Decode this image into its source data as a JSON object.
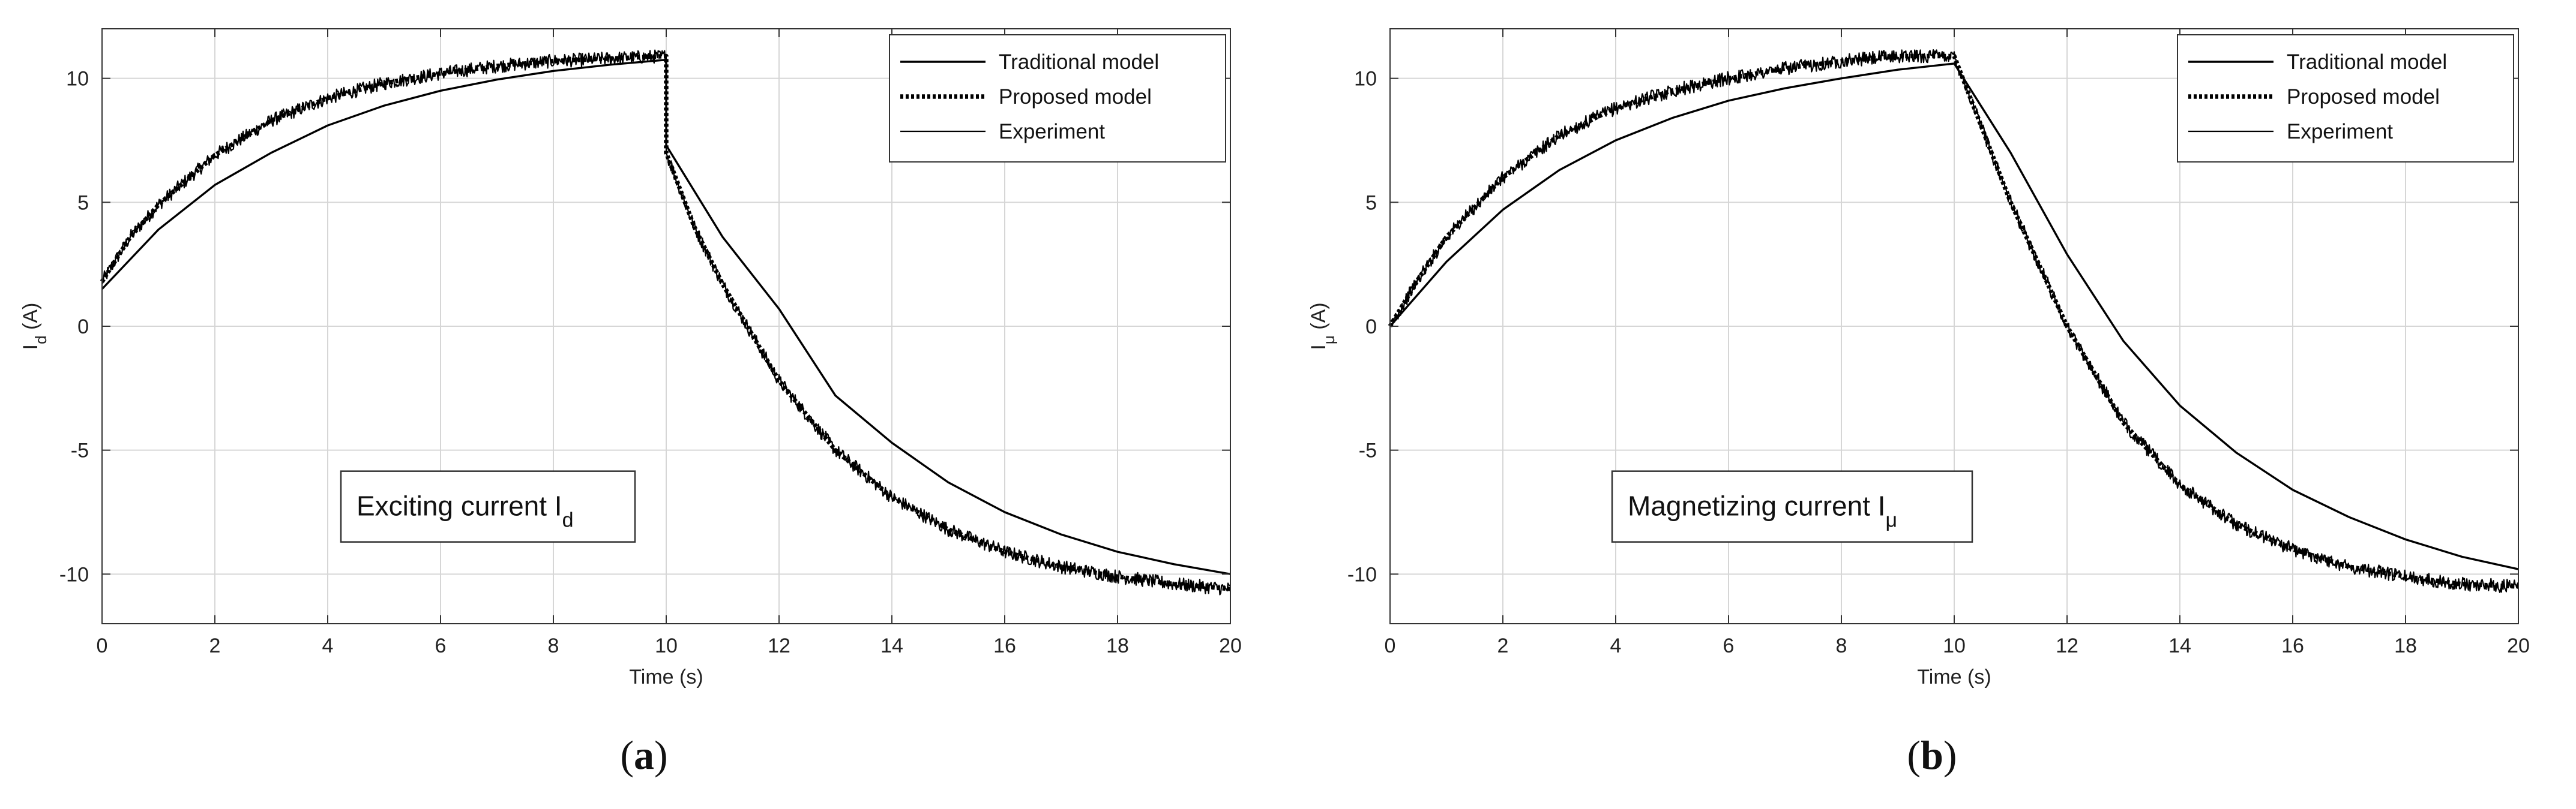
{
  "panels": [
    {
      "label_open": "(",
      "label_letter": "a",
      "label_close": ")",
      "annotation_main": "Exciting current I",
      "annotation_sub": "d",
      "ylabel_main": "I",
      "ylabel_sub": "d",
      "ylabel_unit": " (A)"
    },
    {
      "label_open": "(",
      "label_letter": "b",
      "label_close": ")",
      "annotation_main": "Magnetizing current I",
      "annotation_sub": "μ",
      "ylabel_main": "I",
      "ylabel_sub": "μ",
      "ylabel_unit": " (A)"
    }
  ],
  "chart_data": [
    {
      "type": "line",
      "xlabel": "Time (s)",
      "ylabel": "I_d (A)",
      "xlim": [
        0,
        20
      ],
      "ylim": [
        -12,
        12
      ],
      "xticks": [
        0,
        2,
        4,
        6,
        8,
        10,
        12,
        14,
        16,
        18,
        20
      ],
      "yticks": [
        -10,
        -5,
        0,
        5,
        10
      ],
      "grid": true,
      "legend_position": "top-right",
      "legend": [
        "Traditional model",
        "Proposed model",
        "Experiment"
      ],
      "series": [
        {
          "name": "Traditional model",
          "x": [
            0,
            1,
            2,
            3,
            4,
            5,
            6,
            7,
            8,
            9,
            10,
            10,
            11,
            12,
            13,
            14,
            15,
            16,
            17,
            18,
            19,
            20
          ],
          "y": [
            1.5,
            3.9,
            5.7,
            7.0,
            8.1,
            8.9,
            9.5,
            9.95,
            10.3,
            10.55,
            10.75,
            7.3,
            3.6,
            0.7,
            -2.8,
            -4.7,
            -6.3,
            -7.5,
            -8.4,
            -9.1,
            -9.6,
            -10.0
          ]
        },
        {
          "name": "Proposed model",
          "x": [
            0,
            0.5,
            1,
            2,
            3,
            4,
            5,
            6,
            7,
            8,
            9,
            10,
            10,
            10.5,
            11,
            12,
            13,
            14,
            15,
            16,
            17,
            18,
            19,
            20
          ],
          "y": [
            1.8,
            3.6,
            4.9,
            6.9,
            8.3,
            9.2,
            9.8,
            10.2,
            10.5,
            10.7,
            10.8,
            10.9,
            7.0,
            4.0,
            1.7,
            -2.2,
            -5.0,
            -6.9,
            -8.2,
            -9.1,
            -9.7,
            -10.1,
            -10.4,
            -10.6
          ]
        },
        {
          "name": "Experiment",
          "x": [
            0,
            0.5,
            1,
            2,
            3,
            4,
            5,
            6,
            7,
            8,
            9,
            10,
            10,
            10.5,
            11,
            12,
            13,
            14,
            15,
            16,
            17,
            18,
            19,
            20
          ],
          "y": [
            1.8,
            3.6,
            4.9,
            6.9,
            8.3,
            9.2,
            9.8,
            10.2,
            10.5,
            10.7,
            10.8,
            10.9,
            7.0,
            4.0,
            1.7,
            -2.2,
            -5.0,
            -6.9,
            -8.2,
            -9.1,
            -9.7,
            -10.1,
            -10.4,
            -10.6
          ]
        }
      ]
    },
    {
      "type": "line",
      "xlabel": "Time (s)",
      "ylabel": "I_μ (A)",
      "xlim": [
        0,
        20
      ],
      "ylim": [
        -12,
        12
      ],
      "xticks": [
        0,
        2,
        4,
        6,
        8,
        10,
        12,
        14,
        16,
        18,
        20
      ],
      "yticks": [
        -10,
        -5,
        0,
        5,
        10
      ],
      "grid": true,
      "legend_position": "top-right",
      "legend": [
        "Traditional model",
        "Proposed model",
        "Experiment"
      ],
      "series": [
        {
          "name": "Traditional model",
          "x": [
            0,
            1,
            2,
            3,
            4,
            5,
            6,
            7,
            8,
            9,
            10,
            11,
            12,
            13,
            14,
            15,
            16,
            17,
            18,
            19,
            20
          ],
          "y": [
            0,
            2.6,
            4.7,
            6.3,
            7.5,
            8.4,
            9.1,
            9.6,
            10.0,
            10.35,
            10.6,
            7.0,
            2.9,
            -0.6,
            -3.2,
            -5.1,
            -6.6,
            -7.7,
            -8.6,
            -9.3,
            -9.8
          ]
        },
        {
          "name": "Proposed model",
          "x": [
            0,
            0.5,
            1,
            2,
            3,
            4,
            5,
            6,
            7,
            8,
            9,
            10,
            11,
            12,
            13,
            14,
            15,
            16,
            17,
            18,
            19,
            20
          ],
          "y": [
            0,
            1.9,
            3.6,
            6.0,
            7.7,
            8.8,
            9.5,
            10.0,
            10.4,
            10.7,
            10.9,
            10.9,
            5.0,
            0.0,
            -3.9,
            -6.4,
            -8.0,
            -9.0,
            -9.7,
            -10.1,
            -10.4,
            -10.5
          ]
        },
        {
          "name": "Experiment",
          "x": [
            0,
            0.5,
            1,
            2,
            3,
            4,
            5,
            6,
            7,
            8,
            9,
            10,
            11,
            12,
            13,
            14,
            15,
            16,
            17,
            18,
            19,
            20
          ],
          "y": [
            0,
            1.9,
            3.6,
            6.0,
            7.7,
            8.8,
            9.5,
            10.0,
            10.4,
            10.7,
            10.9,
            10.9,
            5.0,
            0.0,
            -3.9,
            -6.4,
            -8.0,
            -9.0,
            -9.7,
            -10.1,
            -10.4,
            -10.5
          ]
        }
      ]
    }
  ]
}
